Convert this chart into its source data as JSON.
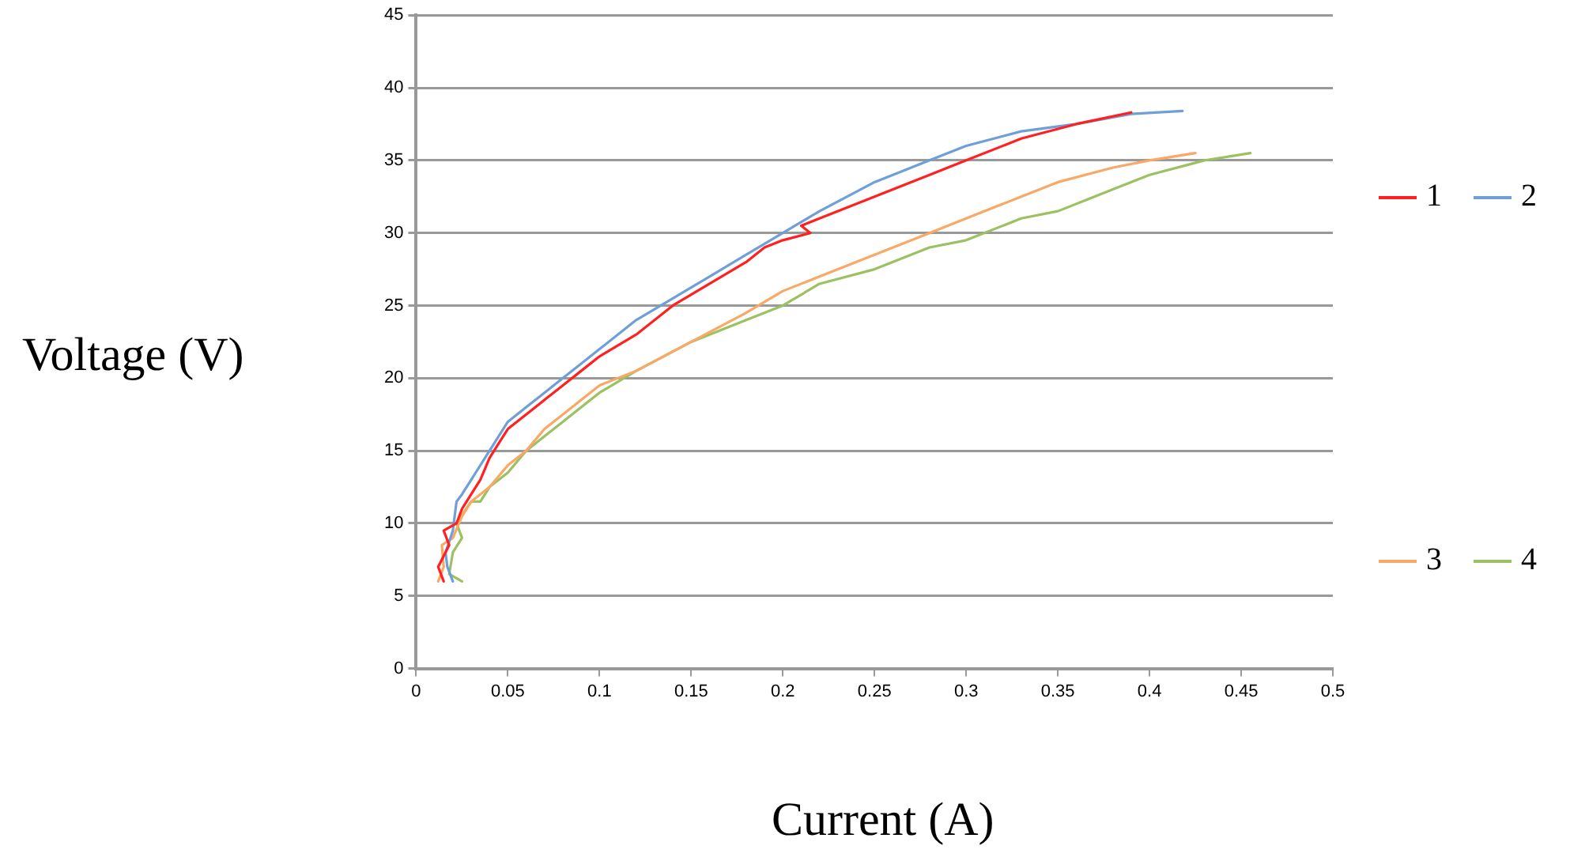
{
  "chart_data": {
    "type": "line",
    "xlabel": "Current (A)",
    "ylabel": "Voltage (V)",
    "xlim": [
      0,
      0.5
    ],
    "xticks": [
      0,
      0.05,
      0.1,
      0.15,
      0.2,
      0.25,
      0.3,
      0.35,
      0.4,
      0.45,
      0.5
    ],
    "ylim": [
      0,
      45
    ],
    "yticks": [
      0,
      5,
      10,
      15,
      20,
      25,
      30,
      35,
      40,
      45
    ],
    "grid": "y",
    "legend": "right",
    "marker": "none",
    "line_style": "solid",
    "series": [
      {
        "name": "1",
        "color": "#ff2020",
        "x": [
          0.015,
          0.012,
          0.018,
          0.015,
          0.022,
          0.025,
          0.03,
          0.035,
          0.04,
          0.045,
          0.05,
          0.06,
          0.07,
          0.08,
          0.09,
          0.1,
          0.12,
          0.14,
          0.16,
          0.18,
          0.19,
          0.2,
          0.215,
          0.21,
          0.22,
          0.25,
          0.28,
          0.3,
          0.33,
          0.36,
          0.39
        ],
        "values": [
          6,
          7,
          8.5,
          9.5,
          10,
          11,
          12,
          13,
          14.5,
          15.5,
          16.5,
          17.5,
          18.5,
          19.5,
          20.5,
          21.5,
          23,
          25,
          26.5,
          28,
          29,
          29.5,
          30,
          30.5,
          31,
          32.5,
          34,
          35,
          36.5,
          37.5,
          38.3
        ]
      },
      {
        "name": "2",
        "color": "#6f9fd8",
        "x": [
          0.02,
          0.017,
          0.016,
          0.02,
          0.022,
          0.025,
          0.03,
          0.035,
          0.04,
          0.045,
          0.05,
          0.06,
          0.07,
          0.08,
          0.09,
          0.1,
          0.12,
          0.14,
          0.16,
          0.18,
          0.2,
          0.22,
          0.25,
          0.28,
          0.3,
          0.33,
          0.36,
          0.39,
          0.418
        ],
        "values": [
          6,
          7,
          8,
          9.5,
          11.5,
          12,
          13,
          14,
          15,
          16,
          17,
          18,
          19,
          20,
          21,
          22,
          24,
          25.5,
          27,
          28.5,
          30,
          31.5,
          33.5,
          35,
          36,
          37,
          37.5,
          38.2,
          38.4
        ]
      },
      {
        "name": "3",
        "color": "#f9a865",
        "x": [
          0.012,
          0.015,
          0.014,
          0.02,
          0.025,
          0.03,
          0.04,
          0.05,
          0.06,
          0.07,
          0.08,
          0.1,
          0.12,
          0.15,
          0.18,
          0.2,
          0.22,
          0.25,
          0.28,
          0.3,
          0.33,
          0.35,
          0.38,
          0.4,
          0.425
        ],
        "values": [
          6,
          7,
          8.5,
          9,
          10.5,
          11.5,
          12.5,
          14,
          15,
          16.5,
          17.5,
          19.5,
          20.5,
          22.5,
          24.5,
          26,
          27,
          28.5,
          30,
          31,
          32.5,
          33.5,
          34.5,
          35,
          35.5
        ]
      },
      {
        "name": "4",
        "color": "#9bc163",
        "x": [
          0.025,
          0.018,
          0.02,
          0.025,
          0.022,
          0.03,
          0.035,
          0.04,
          0.05,
          0.06,
          0.07,
          0.08,
          0.1,
          0.12,
          0.15,
          0.18,
          0.2,
          0.22,
          0.25,
          0.28,
          0.3,
          0.33,
          0.35,
          0.38,
          0.4,
          0.43,
          0.455
        ],
        "values": [
          6,
          6.5,
          8,
          9,
          10,
          11.5,
          11.5,
          12.5,
          13.5,
          15,
          16,
          17,
          19,
          20.5,
          22.5,
          24,
          25,
          26.5,
          27.5,
          29,
          29.5,
          31,
          31.5,
          33,
          34,
          35,
          35.5
        ]
      }
    ]
  }
}
